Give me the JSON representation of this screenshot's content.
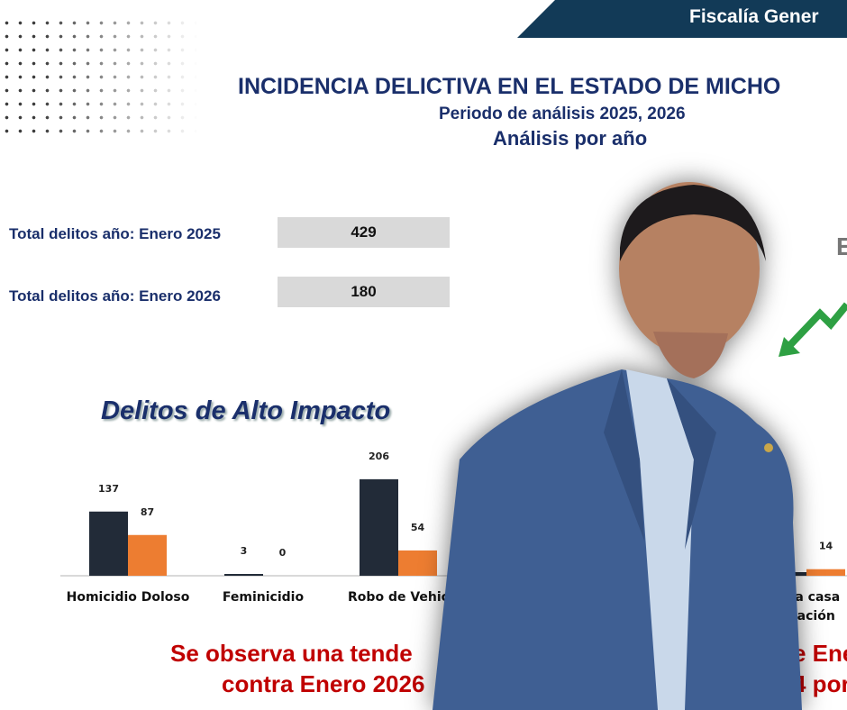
{
  "header": {
    "banner_text": "Fiscalía Gener"
  },
  "titles": {
    "main": "INCIDENCIA DELICTIVA EN EL ESTADO DE MICHO",
    "period": "Periodo de análisis 2025, 2026",
    "analysis": "Análisis por año"
  },
  "totals": [
    {
      "label": "Total delitos año: Enero 2025",
      "value": "429"
    },
    {
      "label": "Total delitos año: Enero 2026",
      "value": "180"
    }
  ],
  "side_letter": "E",
  "caption": {
    "line1_left": "Se observa una tende",
    "line1_right": "e Ene",
    "line2_left": "contra Enero 2026",
    "line2_right": "4 por"
  },
  "colors": {
    "banner": "#123a57",
    "title": "#1a2f6b",
    "series_2025": "#222b38",
    "series_2026": "#ed7d31",
    "caption": "#c00000",
    "arrow": "#2ea043"
  },
  "chart_data": {
    "type": "bar",
    "title": "Delitos de Alto Impacto",
    "categories": [
      "Homicidio Doloso",
      "Feminicidio",
      "Robo de Vehic",
      "bo a casa|bitación"
    ],
    "series": [
      {
        "values": [
          137,
          3,
          206,
          null
        ]
      },
      {
        "values": [
          87,
          0,
          54,
          14
        ]
      }
    ],
    "grid": false
  }
}
